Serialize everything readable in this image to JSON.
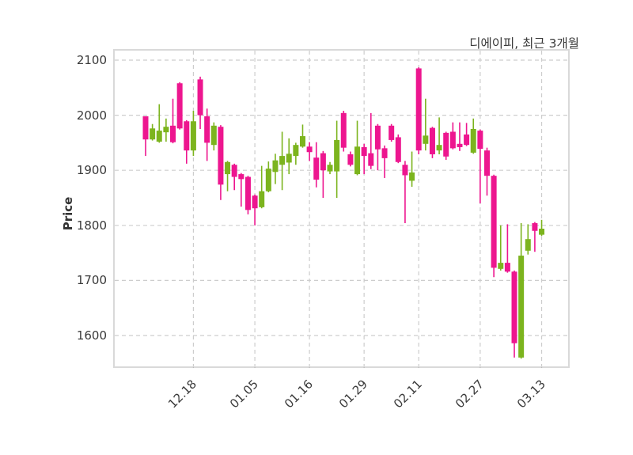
{
  "title": "디에이피, 최근 3개월",
  "y_axis": {
    "label": "Price",
    "ticks": [
      2100,
      2000,
      1900,
      1800,
      1700,
      1600
    ]
  },
  "x_axis": {
    "tick_labels": [
      "12.18",
      "01.05",
      "01.16",
      "01.29",
      "02.11",
      "02.27",
      "03.13"
    ],
    "tick_indices": [
      7,
      16,
      24,
      32,
      40,
      49,
      58
    ]
  },
  "colors": {
    "bullish": "#7CB41E",
    "bearish": "#ED168F",
    "grid": "#cdcdcd",
    "spine": "#d9d9d9",
    "tick": "#bbbbbb",
    "text": "#3a3a3a"
  },
  "chart_data": {
    "type": "candlestick",
    "title": "디에이피, 최근 3개월",
    "ylabel": "Price",
    "ylim": [
      1541,
      2120
    ],
    "grid": true,
    "legend": false,
    "candles_ohlc": [
      [
        1998,
        1998,
        1926,
        1956
      ],
      [
        1956,
        1984,
        1954,
        1976
      ],
      [
        1952,
        2020,
        1950,
        1972
      ],
      [
        1969,
        1994,
        1952,
        1979
      ],
      [
        1981,
        2030,
        1949,
        1951
      ],
      [
        2058,
        2060,
        1974,
        1976
      ],
      [
        1989,
        1991,
        1912,
        1936
      ],
      [
        1936,
        2008,
        1926,
        1989
      ],
      [
        2065,
        2070,
        1975,
        2000
      ],
      [
        1998,
        2012,
        1917,
        1950
      ],
      [
        1946,
        1987,
        1936,
        1981
      ],
      [
        1979,
        1982,
        1846,
        1874
      ],
      [
        1893,
        1917,
        1862,
        1915
      ],
      [
        1910,
        1912,
        1864,
        1888
      ],
      [
        1893,
        1895,
        1834,
        1884
      ],
      [
        1888,
        1890,
        1820,
        1828
      ],
      [
        1854,
        1856,
        1800,
        1831
      ],
      [
        1833,
        1908,
        1831,
        1862
      ],
      [
        1862,
        1916,
        1860,
        1903
      ],
      [
        1897,
        1930,
        1875,
        1918
      ],
      [
        1910,
        1970,
        1864,
        1926
      ],
      [
        1914,
        1958,
        1893,
        1930
      ],
      [
        1926,
        1950,
        1910,
        1946
      ],
      [
        1943,
        1983,
        1941,
        1962
      ],
      [
        1943,
        1951,
        1917,
        1933
      ],
      [
        1923,
        1951,
        1869,
        1883
      ],
      [
        1931,
        1935,
        1850,
        1900
      ],
      [
        1898,
        1915,
        1893,
        1910
      ],
      [
        1898,
        1990,
        1850,
        1955
      ],
      [
        2004,
        2008,
        1934,
        1941
      ],
      [
        1929,
        1934,
        1907,
        1910
      ],
      [
        1893,
        1990,
        1891,
        1943
      ],
      [
        1942,
        1948,
        1893,
        1926
      ],
      [
        1931,
        2004,
        1902,
        1908
      ],
      [
        1981,
        1984,
        1900,
        1938
      ],
      [
        1940,
        1945,
        1886,
        1922
      ],
      [
        1981,
        1984,
        1952,
        1955
      ],
      [
        1960,
        1965,
        1913,
        1915
      ],
      [
        1910,
        1917,
        1804,
        1891
      ],
      [
        1881,
        1934,
        1870,
        1896
      ],
      [
        2085,
        2087,
        1929,
        1936
      ],
      [
        1948,
        2030,
        1936,
        1963
      ],
      [
        1977,
        1979,
        1922,
        1929
      ],
      [
        1936,
        1996,
        1929,
        1946
      ],
      [
        1968,
        1970,
        1919,
        1925
      ],
      [
        1970,
        1987,
        1938,
        1940
      ],
      [
        1948,
        1987,
        1935,
        1942
      ],
      [
        1965,
        1986,
        1944,
        1946
      ],
      [
        1932,
        1994,
        1930,
        1975
      ],
      [
        1972,
        1974,
        1840,
        1939
      ],
      [
        1936,
        1941,
        1854,
        1890
      ],
      [
        1890,
        1892,
        1706,
        1723
      ],
      [
        1721,
        1800,
        1718,
        1732
      ],
      [
        1732,
        1802,
        1714,
        1716
      ],
      [
        1716,
        1718,
        1560,
        1586
      ],
      [
        1560,
        1804,
        1558,
        1745
      ],
      [
        1754,
        1802,
        1747,
        1775
      ],
      [
        1804,
        1806,
        1752,
        1790
      ],
      [
        1783,
        1810,
        1781,
        1794
      ]
    ]
  }
}
